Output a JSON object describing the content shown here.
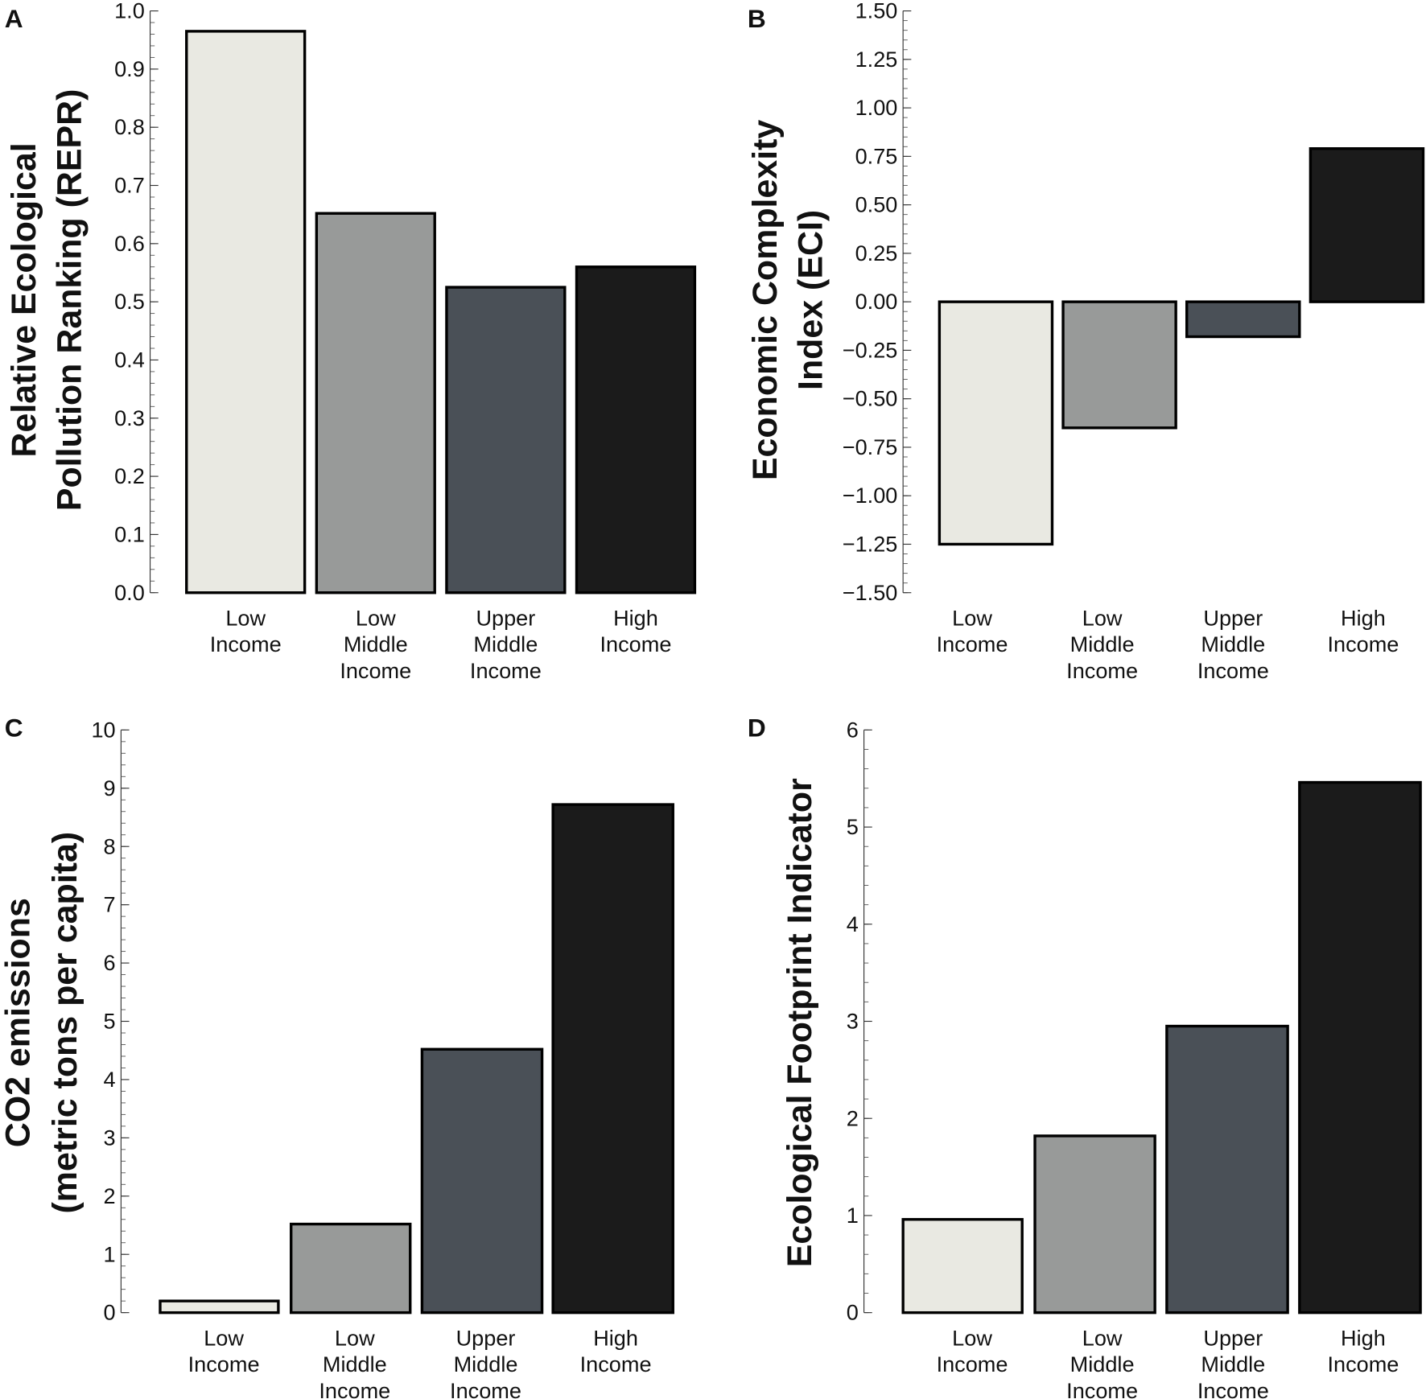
{
  "colors": {
    "low_income": "#e9e9e2",
    "low_middle_income": "#989a99",
    "upper_middle_income": "#4a5057",
    "high_income": "#1b1b1b",
    "outline": "#000000"
  },
  "chart_data": [
    {
      "panel": "A",
      "type": "bar",
      "categories": [
        [
          "Low",
          "Income"
        ],
        [
          "Low",
          "Middle",
          "Income"
        ],
        [
          "Upper",
          "Middle",
          "Income"
        ],
        [
          "High",
          "Income"
        ]
      ],
      "values": [
        0.965,
        0.652,
        0.525,
        0.56
      ],
      "ylabel": [
        "Relative Ecological",
        "Pollution Ranking (REPR)"
      ],
      "ylim": [
        0,
        1.0
      ],
      "yticks": [
        "0.0",
        "0.1",
        "0.2",
        "0.3",
        "0.4",
        "0.5",
        "0.6",
        "0.7",
        "0.8",
        "0.9",
        "1.0"
      ],
      "ytick_values": [
        0,
        0.1,
        0.2,
        0.3,
        0.4,
        0.5,
        0.6,
        0.7,
        0.8,
        0.9,
        1.0
      ],
      "minor_step": 0.02
    },
    {
      "panel": "B",
      "type": "bar",
      "categories": [
        [
          "Low",
          "Income"
        ],
        [
          "Low",
          "Middle",
          "Income"
        ],
        [
          "Upper",
          "Middle",
          "Income"
        ],
        [
          "High",
          "Income"
        ]
      ],
      "values": [
        -1.25,
        -0.65,
        -0.18,
        0.79
      ],
      "ylabel": [
        "Economic Complexity",
        "Index (ECI)"
      ],
      "ylim": [
        -1.5,
        1.5
      ],
      "yticks": [
        "−1.50",
        "−1.25",
        "−1.00",
        "−0.75",
        "−0.50",
        "−0.25",
        "0.00",
        "0.25",
        "0.50",
        "0.75",
        "1.00",
        "1.25",
        "1.50"
      ],
      "ytick_values": [
        -1.5,
        -1.25,
        -1.0,
        -0.75,
        -0.5,
        -0.25,
        0,
        0.25,
        0.5,
        0.75,
        1.0,
        1.25,
        1.5
      ],
      "minor_step": 0.05
    },
    {
      "panel": "C",
      "type": "bar",
      "categories": [
        [
          "Low",
          "Income"
        ],
        [
          "Low",
          "Middle",
          "Income"
        ],
        [
          "Upper",
          "Middle",
          "Income"
        ],
        [
          "High",
          "Income"
        ]
      ],
      "values": [
        0.2,
        1.52,
        4.52,
        8.72
      ],
      "ylabel": [
        "CO2 emissions",
        "(metric tons per capita)"
      ],
      "ylim": [
        0,
        10
      ],
      "yticks": [
        "0",
        "1",
        "2",
        "3",
        "4",
        "5",
        "6",
        "7",
        "8",
        "9",
        "10"
      ],
      "ytick_values": [
        0,
        1,
        2,
        3,
        4,
        5,
        6,
        7,
        8,
        9,
        10
      ],
      "minor_step": 0.2
    },
    {
      "panel": "D",
      "type": "bar",
      "categories": [
        [
          "Low",
          "Income"
        ],
        [
          "Low",
          "Middle",
          "Income"
        ],
        [
          "Upper",
          "Middle",
          "Income"
        ],
        [
          "High",
          "Income"
        ]
      ],
      "values": [
        0.96,
        1.82,
        2.95,
        5.46
      ],
      "ylabel": [
        "Ecological Footprint Indicator"
      ],
      "ylim": [
        0,
        6
      ],
      "yticks": [
        "0",
        "1",
        "2",
        "3",
        "4",
        "5",
        "6"
      ],
      "ytick_values": [
        0,
        1,
        2,
        3,
        4,
        5,
        6
      ],
      "minor_step": 0.2
    }
  ]
}
